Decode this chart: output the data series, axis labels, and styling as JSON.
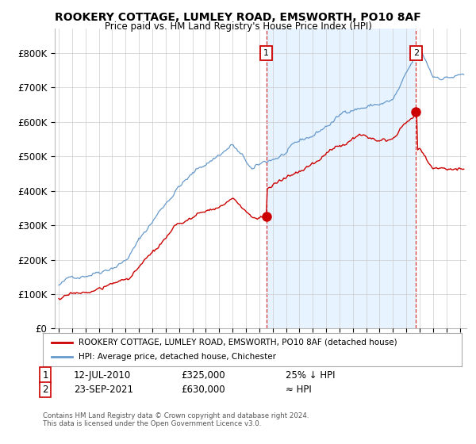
{
  "title": "ROOKERY COTTAGE, LUMLEY ROAD, EMSWORTH, PO10 8AF",
  "subtitle": "Price paid vs. HM Land Registry's House Price Index (HPI)",
  "legend_label_red": "ROOKERY COTTAGE, LUMLEY ROAD, EMSWORTH, PO10 8AF (detached house)",
  "legend_label_blue": "HPI: Average price, detached house, Chichester",
  "annotation1_date": "12-JUL-2010",
  "annotation1_price": "£325,000",
  "annotation1_note": "25% ↓ HPI",
  "annotation2_date": "23-SEP-2021",
  "annotation2_price": "£630,000",
  "annotation2_note": "≈ HPI",
  "footer": "Contains HM Land Registry data © Crown copyright and database right 2024.\nThis data is licensed under the Open Government Licence v3.0.",
  "ylim": [
    0,
    870000
  ],
  "yticks": [
    0,
    100000,
    200000,
    300000,
    400000,
    500000,
    600000,
    700000,
    800000
  ],
  "ytick_labels": [
    "£0",
    "£100K",
    "£200K",
    "£300K",
    "£400K",
    "£500K",
    "£600K",
    "£700K",
    "£800K"
  ],
  "vline1_x": 2010.53,
  "vline2_x": 2021.73,
  "point1_x": 2010.53,
  "point1_y": 325000,
  "point2_x": 2021.73,
  "point2_y": 630000,
  "red_color": "#cc0000",
  "blue_color": "#6699cc",
  "shade_color": "#ddeeff",
  "background_color": "#ffffff",
  "grid_color": "#cccccc",
  "xlim_left": 1994.7,
  "xlim_right": 2025.5
}
